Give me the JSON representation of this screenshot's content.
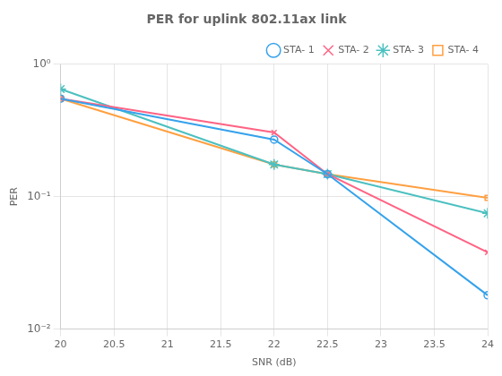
{
  "chart_data": {
    "type": "line",
    "title": "PER for uplink 802.11ax link",
    "xlabel": "SNR (dB)",
    "ylabel": "PER",
    "x": [
      20,
      22,
      22.5,
      24
    ],
    "series": [
      {
        "name": "STA- 1",
        "marker": "circle",
        "values": [
          0.55,
          0.27,
          0.148,
          0.018
        ]
      },
      {
        "name": "STA- 2",
        "marker": "x",
        "values": [
          0.55,
          0.305,
          0.148,
          0.038
        ]
      },
      {
        "name": "STA- 3",
        "marker": "star",
        "values": [
          0.65,
          0.175,
          0.148,
          0.075
        ]
      },
      {
        "name": "STA- 4",
        "marker": "square",
        "values": [
          0.55,
          0.175,
          0.148,
          0.098
        ]
      }
    ],
    "xlim": [
      20,
      24
    ],
    "xticks": [
      20,
      20.5,
      21,
      21.5,
      22,
      22.5,
      23,
      23.5,
      24
    ],
    "ylim": [
      0.01,
      1.0
    ],
    "yticks": [
      {
        "value": 0.01,
        "label": "10⁻²"
      },
      {
        "value": 0.1,
        "label": "10⁻¹"
      },
      {
        "value": 1,
        "label": "10⁰"
      }
    ],
    "log": "y",
    "grid": true,
    "legend": "upper right"
  }
}
